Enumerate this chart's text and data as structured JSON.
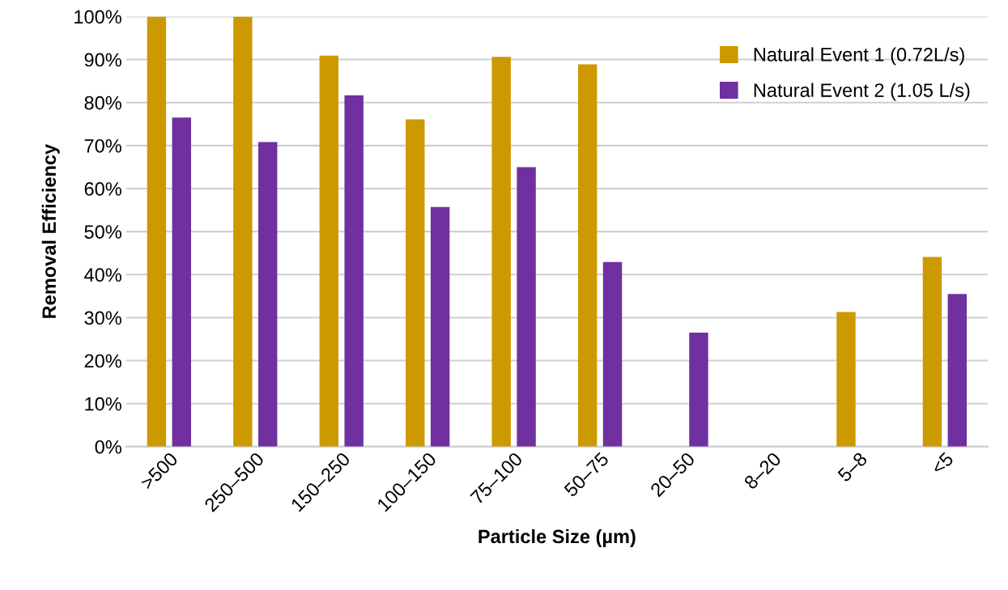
{
  "chart_data": {
    "type": "bar",
    "xlabel": "Particle Size (µm)",
    "ylabel": "Removal Efficiency",
    "categories": [
      ">500",
      "250–500",
      "150–250",
      "100–150",
      "75–100",
      "50–75",
      "20–50",
      "8–20",
      "5–8",
      "<5"
    ],
    "series": [
      {
        "name": "Natural Event 1 (0.72L/s)",
        "color": "#cc9900",
        "values": [
          100,
          100,
          90.9,
          76.1,
          90.6,
          88.9,
          null,
          null,
          31.3,
          44.1
        ]
      },
      {
        "name": "Natural Event 2 (1.05 L/s)",
        "color": "#7030a0",
        "values": [
          76.5,
          70.8,
          81.7,
          55.7,
          65.0,
          42.9,
          26.5,
          null,
          null,
          35.5
        ]
      }
    ],
    "ylim": [
      0,
      100
    ],
    "yticks": [
      {
        "value": 0,
        "label": "0%"
      },
      {
        "value": 10,
        "label": "10%"
      },
      {
        "value": 20,
        "label": "20%"
      },
      {
        "value": 30,
        "label": "30%"
      },
      {
        "value": 40,
        "label": "40%"
      },
      {
        "value": 50,
        "label": "50%"
      },
      {
        "value": 60,
        "label": "60%"
      },
      {
        "value": 70,
        "label": "70%"
      },
      {
        "value": 80,
        "label": "80%"
      },
      {
        "value": 90,
        "label": "90%"
      },
      {
        "value": 100,
        "label": "100%"
      }
    ],
    "grid": "y",
    "legend": "top right"
  }
}
